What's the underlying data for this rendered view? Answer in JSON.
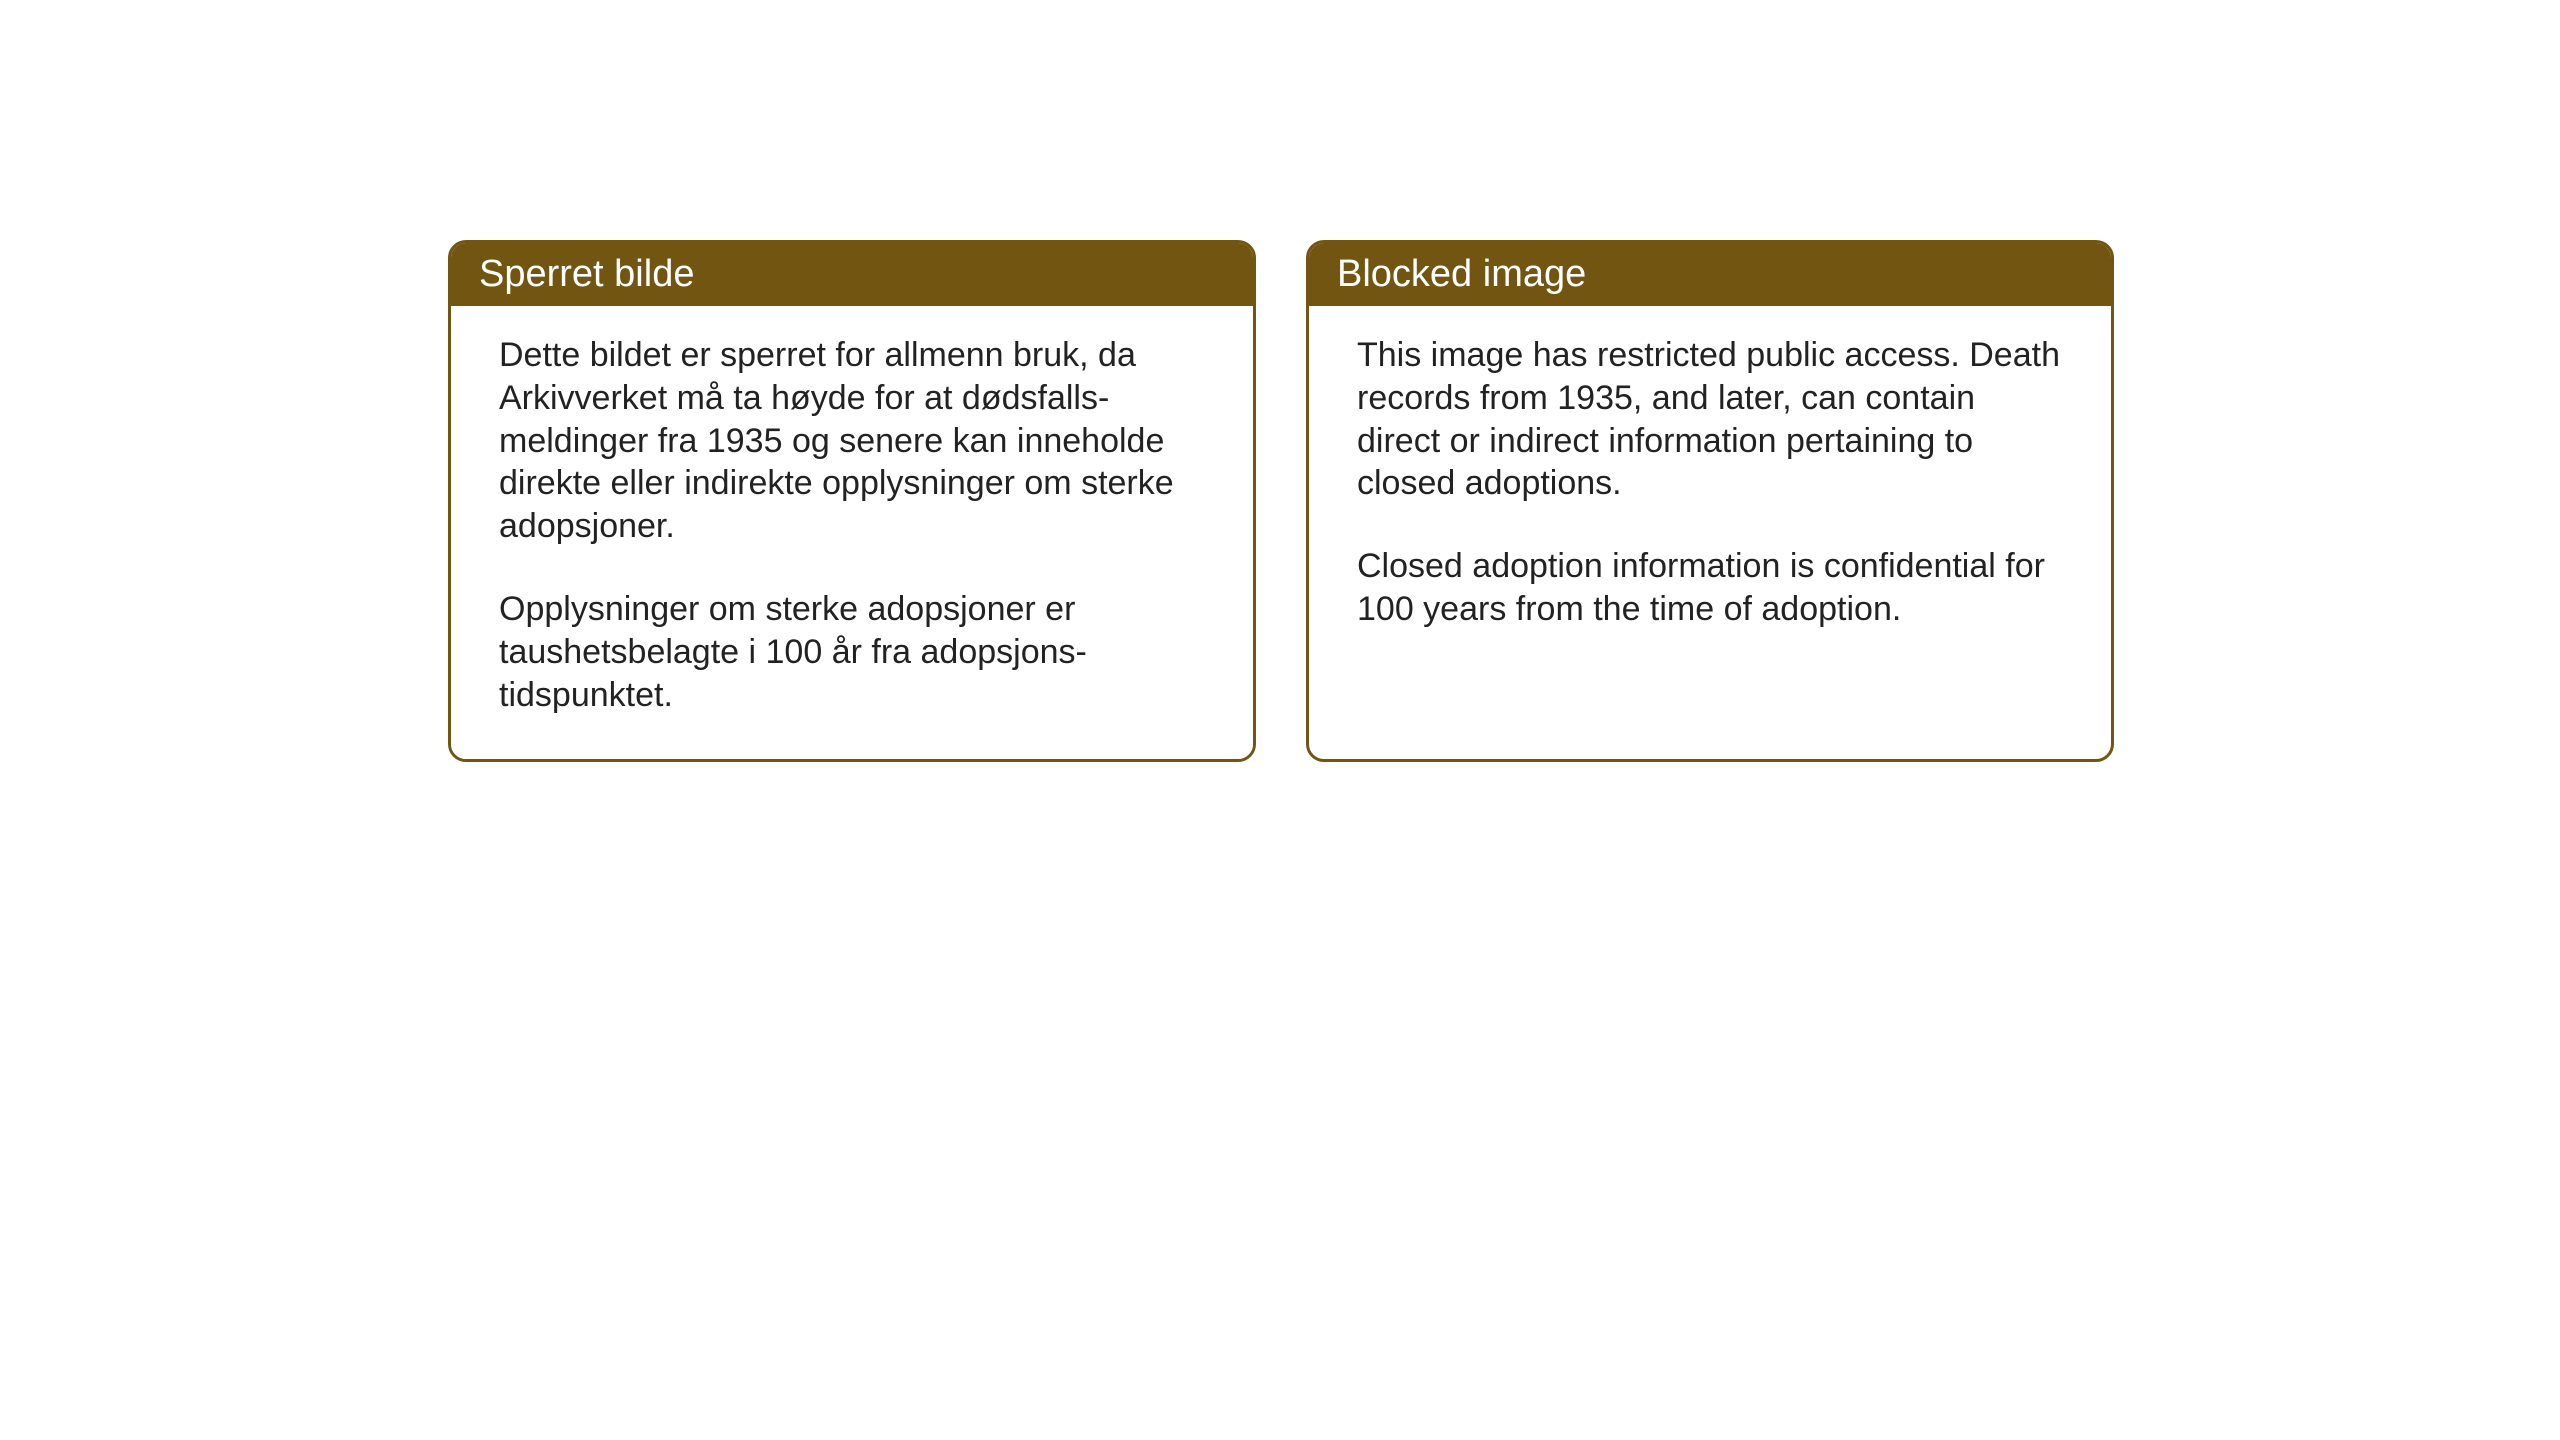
{
  "layout": {
    "background_color": "#ffffff",
    "box_border_color": "#725511",
    "header_bg_color": "#725511",
    "header_text_color": "#ffffff",
    "body_text_color": "#222222",
    "header_fontsize": 38,
    "body_fontsize": 34,
    "border_radius": 18,
    "border_width": 3
  },
  "boxes": {
    "left": {
      "title": "Sperret bilde",
      "paragraph1": "Dette bildet er sperret for allmenn bruk, da Arkivverket må ta høyde for at dødsfalls-meldinger fra 1935 og senere kan inneholde direkte eller indirekte opplysninger om sterke adopsjoner.",
      "paragraph2": "Opplysninger om sterke adopsjoner er taushetsbelagte i 100 år fra adopsjons-tidspunktet."
    },
    "right": {
      "title": "Blocked image",
      "paragraph1": "This image has restricted public access. Death records from 1935, and later, can contain direct or indirect information pertaining to closed adoptions.",
      "paragraph2": "Closed adoption information is confidential for 100 years from the time of adoption."
    }
  }
}
